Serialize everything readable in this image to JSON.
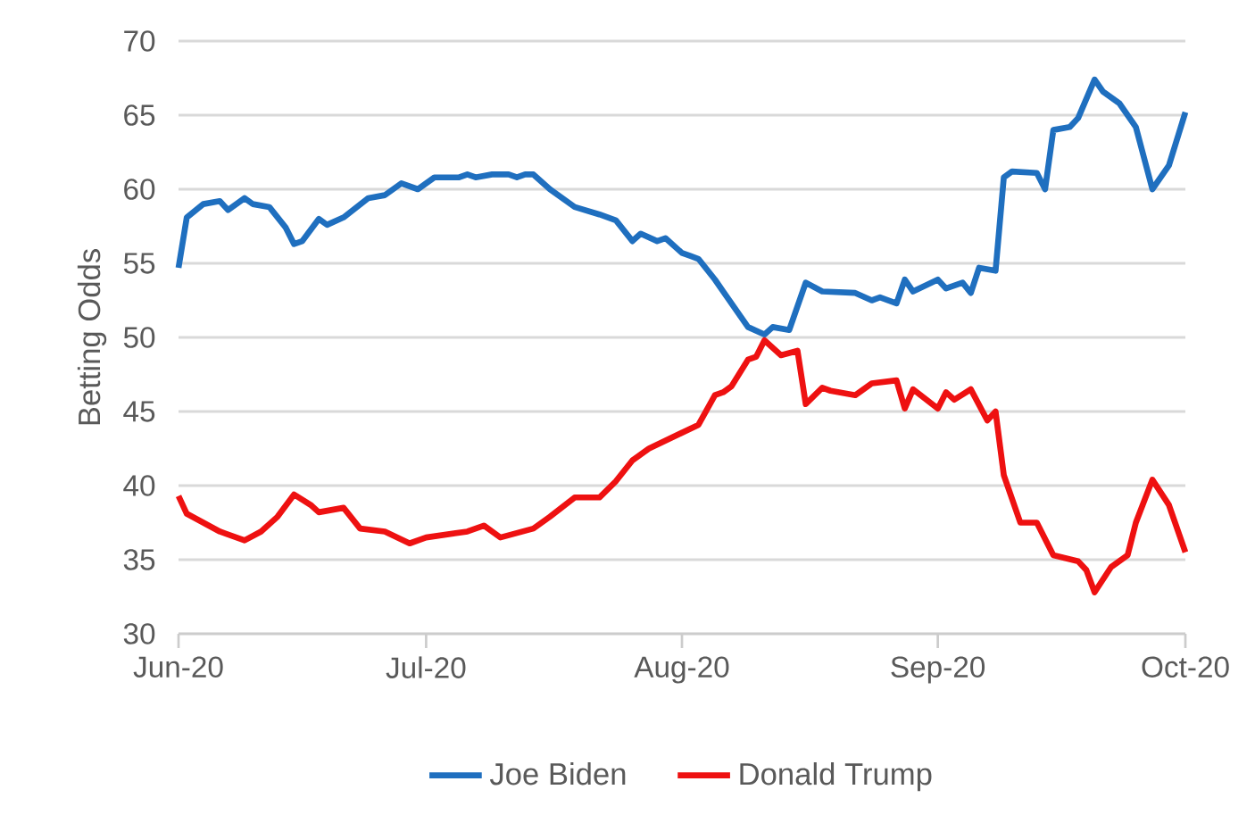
{
  "chart_data": {
    "type": "line",
    "ylabel": "Betting Odds",
    "ylim": [
      30,
      70
    ],
    "yticks": [
      30,
      35,
      40,
      45,
      50,
      55,
      60,
      65,
      70
    ],
    "xlim": [
      "2020-06-01",
      "2020-10-01"
    ],
    "xticks": [
      {
        "value": "2020-06-01",
        "label": "Jun-20"
      },
      {
        "value": "2020-07-01",
        "label": "Jul-20"
      },
      {
        "value": "2020-08-01",
        "label": "Aug-20"
      },
      {
        "value": "2020-09-01",
        "label": "Sep-20"
      },
      {
        "value": "2020-10-01",
        "label": "Oct-20"
      }
    ],
    "grid": "y",
    "legend": "bottom",
    "marker": "none",
    "line_style": "solid",
    "series": [
      {
        "name": "Joe Biden",
        "color": "#1f6fbf",
        "x": [
          "2020-06-01",
          "2020-06-02",
          "2020-06-04",
          "2020-06-06",
          "2020-06-07",
          "2020-06-09",
          "2020-06-10",
          "2020-06-12",
          "2020-06-14",
          "2020-06-15",
          "2020-06-16",
          "2020-06-18",
          "2020-06-19",
          "2020-06-21",
          "2020-06-24",
          "2020-06-26",
          "2020-06-28",
          "2020-06-30",
          "2020-07-02",
          "2020-07-05",
          "2020-07-06",
          "2020-07-07",
          "2020-07-09",
          "2020-07-11",
          "2020-07-12",
          "2020-07-13",
          "2020-07-14",
          "2020-07-16",
          "2020-07-19",
          "2020-07-22",
          "2020-07-24",
          "2020-07-26",
          "2020-07-27",
          "2020-07-29",
          "2020-07-30",
          "2020-08-01",
          "2020-08-02",
          "2020-08-03",
          "2020-08-05",
          "2020-08-06",
          "2020-08-09",
          "2020-08-11",
          "2020-08-12",
          "2020-08-14",
          "2020-08-16",
          "2020-08-18",
          "2020-08-22",
          "2020-08-24",
          "2020-08-25",
          "2020-08-27",
          "2020-08-28",
          "2020-08-29",
          "2020-09-01",
          "2020-09-02",
          "2020-09-04",
          "2020-09-05",
          "2020-09-06",
          "2020-09-08",
          "2020-09-09",
          "2020-09-10",
          "2020-09-13",
          "2020-09-14",
          "2020-09-15",
          "2020-09-17",
          "2020-09-18",
          "2020-09-20",
          "2020-09-21",
          "2020-09-23",
          "2020-09-25",
          "2020-09-27",
          "2020-09-29",
          "2020-10-01"
        ],
        "values": [
          54.7,
          58.1,
          59.0,
          59.2,
          58.6,
          59.4,
          59.0,
          58.8,
          57.4,
          56.3,
          56.5,
          58.0,
          57.6,
          58.1,
          59.4,
          59.6,
          60.4,
          60.0,
          60.8,
          60.8,
          61.0,
          60.8,
          61.0,
          61.0,
          60.8,
          61.0,
          61.0,
          60.0,
          58.8,
          58.3,
          57.9,
          56.5,
          57.0,
          56.5,
          56.7,
          55.7,
          55.5,
          55.3,
          53.9,
          53.1,
          50.7,
          50.2,
          50.7,
          50.5,
          53.7,
          53.1,
          53.0,
          52.5,
          52.7,
          52.3,
          53.9,
          53.1,
          53.9,
          53.3,
          53.7,
          53.0,
          54.7,
          54.5,
          60.8,
          61.2,
          61.1,
          60.0,
          64.0,
          64.2,
          64.8,
          67.4,
          66.6,
          65.8,
          64.2,
          60.0,
          61.6,
          65.2
        ]
      },
      {
        "name": "Donald Trump",
        "color": "#ee1111",
        "x": [
          "2020-06-01",
          "2020-06-02",
          "2020-06-04",
          "2020-06-06",
          "2020-06-09",
          "2020-06-11",
          "2020-06-13",
          "2020-06-15",
          "2020-06-17",
          "2020-06-18",
          "2020-06-21",
          "2020-06-23",
          "2020-06-26",
          "2020-06-29",
          "2020-07-01",
          "2020-07-06",
          "2020-07-08",
          "2020-07-10",
          "2020-07-14",
          "2020-07-16",
          "2020-07-19",
          "2020-07-22",
          "2020-07-24",
          "2020-07-26",
          "2020-07-28",
          "2020-07-31",
          "2020-08-03",
          "2020-08-05",
          "2020-08-06",
          "2020-08-07",
          "2020-08-09",
          "2020-08-10",
          "2020-08-11",
          "2020-08-13",
          "2020-08-15",
          "2020-08-16",
          "2020-08-18",
          "2020-08-19",
          "2020-08-22",
          "2020-08-24",
          "2020-08-27",
          "2020-08-28",
          "2020-08-29",
          "2020-09-01",
          "2020-09-02",
          "2020-09-03",
          "2020-09-05",
          "2020-09-07",
          "2020-09-08",
          "2020-09-09",
          "2020-09-11",
          "2020-09-13",
          "2020-09-15",
          "2020-09-18",
          "2020-09-19",
          "2020-09-20",
          "2020-09-22",
          "2020-09-24",
          "2020-09-25",
          "2020-09-27",
          "2020-09-29",
          "2020-10-01"
        ],
        "values": [
          39.3,
          38.1,
          37.5,
          36.9,
          36.3,
          36.9,
          37.9,
          39.4,
          38.7,
          38.2,
          38.5,
          37.1,
          36.9,
          36.1,
          36.5,
          36.9,
          37.3,
          36.5,
          37.1,
          37.9,
          39.2,
          39.2,
          40.3,
          41.7,
          42.5,
          43.3,
          44.1,
          46.1,
          46.3,
          46.7,
          48.5,
          48.7,
          49.8,
          48.8,
          49.1,
          45.5,
          46.6,
          46.4,
          46.1,
          46.9,
          47.1,
          45.2,
          46.5,
          45.2,
          46.3,
          45.8,
          46.5,
          44.4,
          45.0,
          40.7,
          37.5,
          37.5,
          35.3,
          34.9,
          34.3,
          32.8,
          34.5,
          35.3,
          37.5,
          40.4,
          38.7,
          35.5
        ]
      }
    ]
  }
}
